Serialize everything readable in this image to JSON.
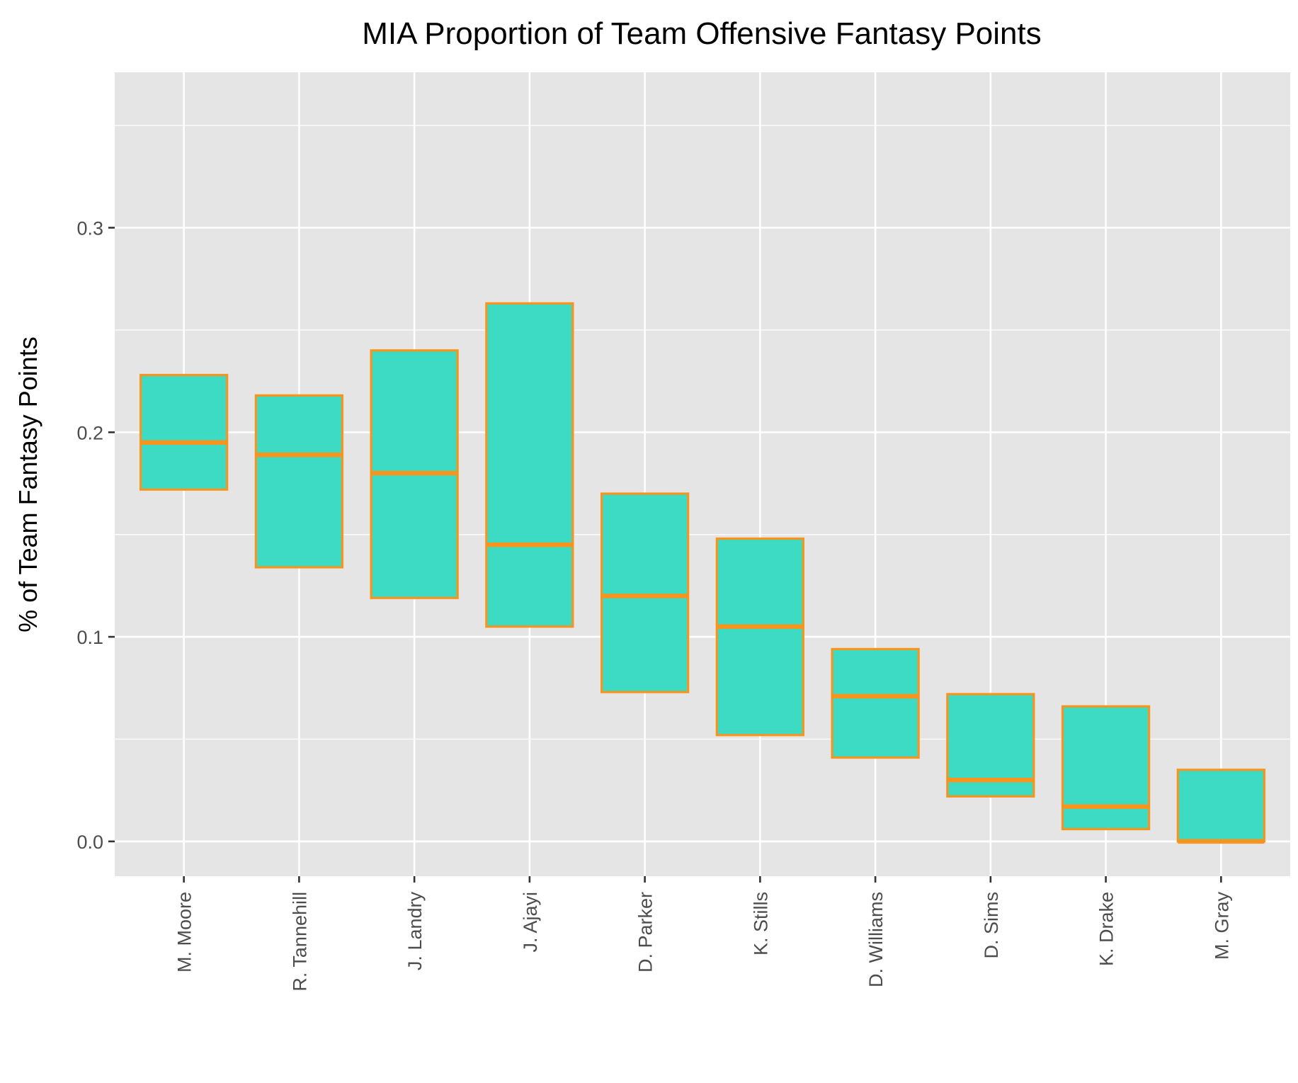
{
  "chart_data": {
    "type": "box",
    "title": "MIA Proportion of Team Offensive Fantasy Points",
    "xlabel": "",
    "ylabel": "% of Team Fantasy Points",
    "ylim": [
      -0.017,
      0.376
    ],
    "yticks": [
      "0.0",
      "0.1",
      "0.2",
      "0.3"
    ],
    "grid": true,
    "colors": {
      "fill": "#3ddbc3",
      "stroke": "#f7941d",
      "panel": "#e5e5e5",
      "grid": "#ffffff",
      "tick_text": "#4d4d4d"
    },
    "categories": [
      "M. Moore",
      "R. Tannehill",
      "J. Landry",
      "J. Ajayi",
      "D. Parker",
      "K. Stills",
      "D. Williams",
      "D. Sims",
      "K. Drake",
      "M. Gray"
    ],
    "boxes": [
      {
        "lower": 0.172,
        "median": 0.195,
        "upper": 0.228
      },
      {
        "lower": 0.134,
        "median": 0.189,
        "upper": 0.218
      },
      {
        "lower": 0.119,
        "median": 0.18,
        "upper": 0.24
      },
      {
        "lower": 0.105,
        "median": 0.145,
        "upper": 0.263
      },
      {
        "lower": 0.073,
        "median": 0.12,
        "upper": 0.17
      },
      {
        "lower": 0.052,
        "median": 0.105,
        "upper": 0.148
      },
      {
        "lower": 0.041,
        "median": 0.071,
        "upper": 0.094
      },
      {
        "lower": 0.022,
        "median": 0.03,
        "upper": 0.072
      },
      {
        "lower": 0.006,
        "median": 0.017,
        "upper": 0.066
      },
      {
        "lower": 0.0,
        "median": 0.0,
        "upper": 0.035
      }
    ]
  }
}
